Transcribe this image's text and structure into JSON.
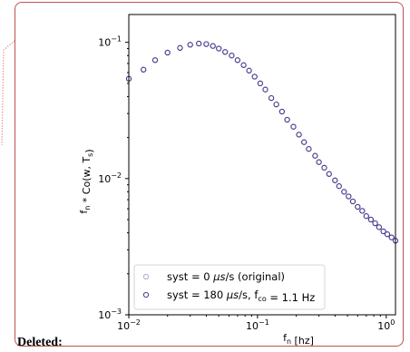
{
  "deleted_label": "Deleted:",
  "chart_data": {
    "type": "scatter",
    "title": "",
    "xlabel": "f_n [hz]",
    "ylabel": "f_n * Co(w, T_s)",
    "xscale": "log",
    "yscale": "log",
    "xlim": [
      0.01,
      1.3
    ],
    "ylim": [
      0.001,
      0.2
    ],
    "x_ticks": [
      {
        "value": 0.01,
        "base": "10",
        "exp": "−2"
      },
      {
        "value": 0.1,
        "base": "10",
        "exp": "−1"
      },
      {
        "value": 1,
        "base": "10",
        "exp": "0"
      }
    ],
    "y_ticks": [
      {
        "value": 0.001,
        "base": "10",
        "exp": "−3"
      },
      {
        "value": 0.01,
        "base": "10",
        "exp": "−2"
      },
      {
        "value": 0.1,
        "base": "10",
        "exp": "−1"
      }
    ],
    "legend_position": "lower-left",
    "colors": {
      "original": "#b5a6d2",
      "filtered": "#4b3a8c"
    },
    "series": [
      {
        "name": "syst = 0 μs/s (original)",
        "legend_parts": [
          [
            "syst = 0 ",
            false
          ],
          [
            "μs",
            true
          ],
          [
            "/s (original)",
            false
          ]
        ],
        "color": "#b5a6d2",
        "points": [
          [
            0.01,
            0.054
          ],
          [
            0.013,
            0.063
          ],
          [
            0.016,
            0.074
          ],
          [
            0.02,
            0.084
          ],
          [
            0.025,
            0.091
          ],
          [
            0.03,
            0.096
          ],
          [
            0.035,
            0.098
          ],
          [
            0.04,
            0.097
          ],
          [
            0.045,
            0.094
          ],
          [
            0.05,
            0.09
          ],
          [
            0.056,
            0.085
          ],
          [
            0.063,
            0.08
          ],
          [
            0.07,
            0.074
          ],
          [
            0.078,
            0.068
          ],
          [
            0.086,
            0.062
          ],
          [
            0.095,
            0.056
          ],
          [
            0.105,
            0.05
          ],
          [
            0.115,
            0.045
          ],
          [
            0.128,
            0.039
          ],
          [
            0.14,
            0.035
          ],
          [
            0.155,
            0.031
          ],
          [
            0.17,
            0.027
          ],
          [
            0.19,
            0.024
          ],
          [
            0.21,
            0.021
          ],
          [
            0.23,
            0.0185
          ],
          [
            0.25,
            0.0165
          ],
          [
            0.28,
            0.0147
          ],
          [
            0.3,
            0.0132
          ],
          [
            0.33,
            0.012
          ],
          [
            0.36,
            0.0108
          ],
          [
            0.4,
            0.0097
          ],
          [
            0.43,
            0.0088
          ],
          [
            0.47,
            0.008
          ],
          [
            0.51,
            0.0074
          ],
          [
            0.55,
            0.0068
          ],
          [
            0.6,
            0.0062
          ],
          [
            0.65,
            0.0058
          ],
          [
            0.7,
            0.0053
          ],
          [
            0.76,
            0.005
          ],
          [
            0.82,
            0.0047
          ],
          [
            0.88,
            0.0044
          ],
          [
            0.95,
            0.0041
          ],
          [
            1.02,
            0.0039
          ],
          [
            1.1,
            0.0037
          ],
          [
            1.18,
            0.0035
          ],
          [
            1.25,
            0.0033
          ]
        ]
      },
      {
        "name": "syst = 180 μs/s, f_co = 1.1 Hz",
        "legend_parts": [
          [
            "syst = 180 ",
            false
          ],
          [
            "μs",
            true
          ],
          [
            "/s, ",
            false
          ],
          [
            "f",
            false
          ],
          [
            "co",
            "sub"
          ],
          [
            " = 1.1 Hz",
            false
          ]
        ],
        "color": "#4b3a8c",
        "points": [
          [
            0.01,
            0.054
          ],
          [
            0.013,
            0.063
          ],
          [
            0.016,
            0.074
          ],
          [
            0.02,
            0.084
          ],
          [
            0.025,
            0.091
          ],
          [
            0.03,
            0.096
          ],
          [
            0.035,
            0.098
          ],
          [
            0.04,
            0.097
          ],
          [
            0.045,
            0.094
          ],
          [
            0.05,
            0.09
          ],
          [
            0.056,
            0.085
          ],
          [
            0.063,
            0.08
          ],
          [
            0.07,
            0.074
          ],
          [
            0.078,
            0.068
          ],
          [
            0.086,
            0.062
          ],
          [
            0.095,
            0.056
          ],
          [
            0.105,
            0.05
          ],
          [
            0.115,
            0.045
          ],
          [
            0.128,
            0.039
          ],
          [
            0.14,
            0.035
          ],
          [
            0.155,
            0.031
          ],
          [
            0.17,
            0.027
          ],
          [
            0.19,
            0.024
          ],
          [
            0.21,
            0.021
          ],
          [
            0.23,
            0.0185
          ],
          [
            0.25,
            0.0165
          ],
          [
            0.28,
            0.0147
          ],
          [
            0.3,
            0.0132
          ],
          [
            0.33,
            0.012
          ],
          [
            0.36,
            0.0108
          ],
          [
            0.4,
            0.0097
          ],
          [
            0.43,
            0.0088
          ],
          [
            0.47,
            0.008
          ],
          [
            0.51,
            0.0074
          ],
          [
            0.55,
            0.0068
          ],
          [
            0.6,
            0.0062
          ],
          [
            0.65,
            0.0058
          ],
          [
            0.7,
            0.0053
          ],
          [
            0.76,
            0.005
          ],
          [
            0.82,
            0.0047
          ],
          [
            0.88,
            0.0044
          ],
          [
            0.95,
            0.0041
          ],
          [
            1.02,
            0.0039
          ],
          [
            1.1,
            0.0037
          ],
          [
            1.18,
            0.0035
          ],
          [
            1.25,
            0.0033
          ]
        ]
      }
    ]
  }
}
